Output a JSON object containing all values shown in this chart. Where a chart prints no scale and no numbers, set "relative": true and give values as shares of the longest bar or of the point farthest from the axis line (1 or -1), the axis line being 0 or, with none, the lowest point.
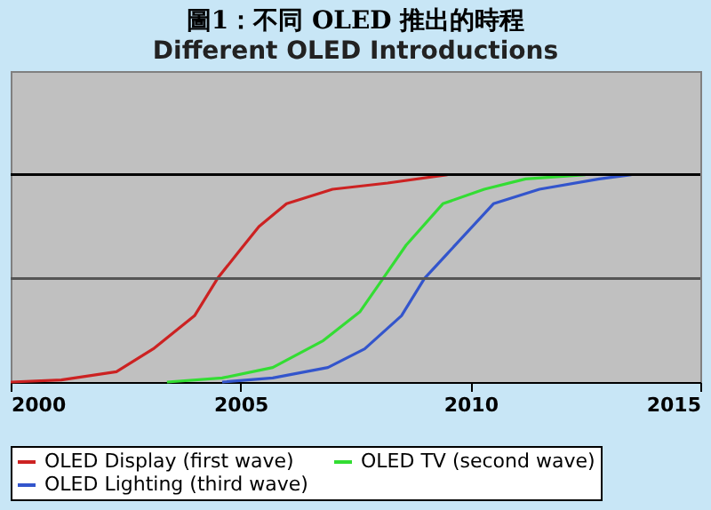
{
  "chart_data": {
    "type": "line",
    "title": "圖1：不同 OLED 推出的時程",
    "subtitle": "Different OLED Introductions",
    "relative": true,
    "xlim": [
      2000,
      2015
    ],
    "xticks": [
      2000,
      2005,
      2010,
      2015
    ],
    "ref_lines": [
      {
        "axis": "y",
        "value": 0.5,
        "color": "#555555"
      },
      {
        "axis": "y",
        "value": 1,
        "color": "#000000"
      }
    ],
    "legend": "bottom",
    "marker": "none",
    "line_style": "solid",
    "series": [
      {
        "name": "OLED Display (first wave)",
        "color": "#cc2222",
        "x": [
          2000,
          2001.1,
          2002.3,
          2003.1,
          2004,
          2004.5,
          2005,
          2005.4,
          2006,
          2007,
          2008.2,
          2009.5
        ],
        "values": [
          0,
          0.01,
          0.05,
          0.16,
          0.32,
          0.5,
          0.64,
          0.75,
          0.86,
          0.93,
          0.96,
          1.0
        ]
      },
      {
        "name": "OLED TV (second wave)",
        "color": "#33dd33",
        "x": [
          2003.4,
          2004.6,
          2005.7,
          2006.8,
          2007.6,
          2008.1,
          2008.6,
          2009.4,
          2010.3,
          2011.2,
          2012.5
        ],
        "values": [
          0,
          0.02,
          0.07,
          0.2,
          0.34,
          0.5,
          0.66,
          0.86,
          0.93,
          0.98,
          1.0
        ]
      },
      {
        "name": "OLED Lighting (third wave)",
        "color": "#3355cc",
        "x": [
          2004.6,
          2005.7,
          2006.9,
          2007.7,
          2008.5,
          2009,
          2009.5,
          2010.5,
          2011.5,
          2012.8,
          2013.5
        ],
        "values": [
          0,
          0.02,
          0.07,
          0.16,
          0.32,
          0.5,
          0.62,
          0.86,
          0.93,
          0.98,
          1.0
        ]
      }
    ]
  }
}
